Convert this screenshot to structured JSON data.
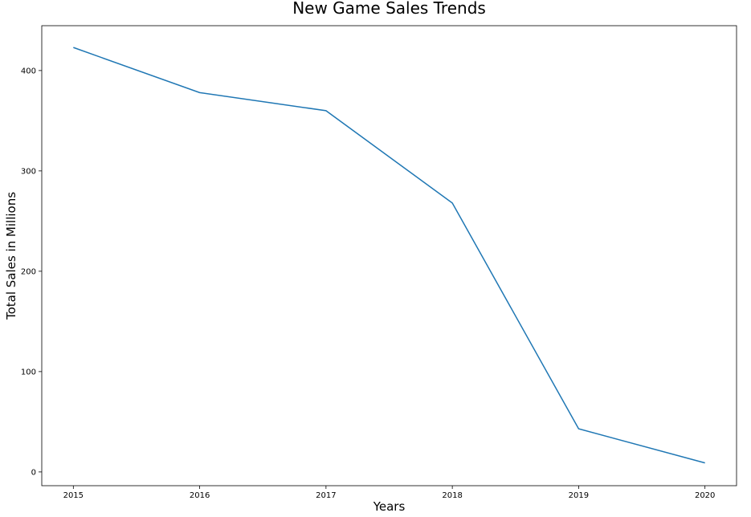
{
  "chart_data": {
    "type": "line",
    "title": "New Game Sales Trends",
    "xlabel": "Years",
    "ylabel": "Total Sales in Millions",
    "x": [
      2015,
      2016,
      2017,
      2018,
      2019,
      2020
    ],
    "series": [
      {
        "values": [
          423,
          378,
          360,
          268,
          43,
          9
        ],
        "color": "#1f77b4"
      }
    ],
    "xlim": [
      2014.75,
      2020.25
    ],
    "ylim": [
      -13.7,
      444.7
    ],
    "yticks": [
      0,
      100,
      200,
      300,
      400
    ],
    "xtick_labels": [
      "2015",
      "2016",
      "2017",
      "2018",
      "2019",
      "2020"
    ],
    "ytick_labels": [
      "0",
      "100",
      "200",
      "300",
      "400"
    ],
    "grid": false,
    "legend": "none"
  }
}
